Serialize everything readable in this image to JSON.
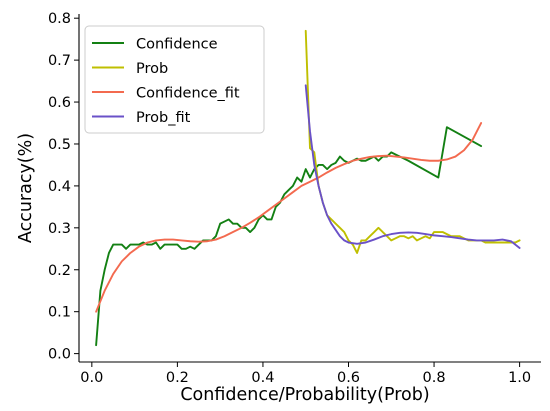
{
  "chart_data": {
    "type": "line",
    "title": "",
    "xlabel": "Confidence/Probability(Prob)",
    "ylabel": "Accuracy(%)",
    "xlim": [
      -0.03,
      1.05
    ],
    "ylim": [
      -0.02,
      0.81
    ],
    "xticks": [
      "0.0",
      "0.2",
      "0.4",
      "0.6",
      "0.8",
      "1.0"
    ],
    "yticks": [
      "0.0",
      "0.1",
      "0.2",
      "0.3",
      "0.4",
      "0.5",
      "0.6",
      "0.7",
      "0.8"
    ],
    "grid": false,
    "legend_position": "top-left",
    "series": [
      {
        "name": "Confidence",
        "color": "#138013",
        "x": [
          0.01,
          0.02,
          0.03,
          0.04,
          0.05,
          0.06,
          0.07,
          0.08,
          0.09,
          0.1,
          0.11,
          0.12,
          0.13,
          0.14,
          0.15,
          0.16,
          0.17,
          0.18,
          0.19,
          0.2,
          0.21,
          0.22,
          0.23,
          0.24,
          0.25,
          0.26,
          0.27,
          0.28,
          0.29,
          0.3,
          0.31,
          0.32,
          0.33,
          0.34,
          0.35,
          0.36,
          0.37,
          0.38,
          0.39,
          0.4,
          0.41,
          0.42,
          0.43,
          0.44,
          0.45,
          0.46,
          0.47,
          0.48,
          0.49,
          0.5,
          0.51,
          0.52,
          0.53,
          0.54,
          0.55,
          0.56,
          0.57,
          0.58,
          0.59,
          0.6,
          0.61,
          0.62,
          0.63,
          0.64,
          0.65,
          0.66,
          0.67,
          0.68,
          0.69,
          0.7,
          0.71,
          0.72,
          0.73,
          0.74,
          0.81,
          0.83,
          0.91
        ],
        "y": [
          0.02,
          0.15,
          0.2,
          0.24,
          0.26,
          0.26,
          0.26,
          0.25,
          0.26,
          0.26,
          0.26,
          0.265,
          0.26,
          0.26,
          0.265,
          0.25,
          0.26,
          0.26,
          0.26,
          0.26,
          0.25,
          0.25,
          0.255,
          0.25,
          0.26,
          0.27,
          0.27,
          0.27,
          0.28,
          0.31,
          0.315,
          0.32,
          0.31,
          0.31,
          0.3,
          0.3,
          0.29,
          0.3,
          0.32,
          0.33,
          0.32,
          0.32,
          0.35,
          0.36,
          0.38,
          0.39,
          0.4,
          0.42,
          0.41,
          0.44,
          0.42,
          0.44,
          0.45,
          0.45,
          0.44,
          0.45,
          0.455,
          0.47,
          0.46,
          0.455,
          0.46,
          0.465,
          0.46,
          0.46,
          0.465,
          0.47,
          0.46,
          0.47,
          0.47,
          0.48,
          0.475,
          0.47,
          0.465,
          0.46,
          0.42,
          0.54,
          0.495
        ]
      },
      {
        "name": "Prob",
        "color": "#bfbf00",
        "x": [
          0.5,
          0.51,
          0.52,
          0.53,
          0.54,
          0.55,
          0.56,
          0.57,
          0.58,
          0.59,
          0.6,
          0.61,
          0.62,
          0.63,
          0.64,
          0.65,
          0.66,
          0.67,
          0.68,
          0.69,
          0.7,
          0.71,
          0.72,
          0.73,
          0.74,
          0.75,
          0.76,
          0.77,
          0.78,
          0.79,
          0.8,
          0.81,
          0.82,
          0.83,
          0.84,
          0.85,
          0.86,
          0.87,
          0.88,
          0.89,
          0.9,
          0.91,
          0.92,
          0.93,
          0.94,
          0.95,
          0.96,
          0.97,
          0.98,
          0.99,
          1.0
        ],
        "y": [
          0.77,
          0.49,
          0.48,
          0.4,
          0.36,
          0.33,
          0.32,
          0.31,
          0.3,
          0.29,
          0.27,
          0.26,
          0.24,
          0.27,
          0.27,
          0.28,
          0.29,
          0.3,
          0.29,
          0.28,
          0.27,
          0.275,
          0.28,
          0.28,
          0.275,
          0.28,
          0.27,
          0.275,
          0.28,
          0.275,
          0.29,
          0.29,
          0.29,
          0.285,
          0.28,
          0.28,
          0.28,
          0.275,
          0.27,
          0.27,
          0.27,
          0.27,
          0.265,
          0.265,
          0.265,
          0.265,
          0.265,
          0.265,
          0.265,
          0.265,
          0.27
        ]
      },
      {
        "name": "Confidence_fit",
        "color": "#f36a4f",
        "x": [
          0.01,
          0.03,
          0.05,
          0.07,
          0.09,
          0.11,
          0.13,
          0.15,
          0.17,
          0.19,
          0.21,
          0.23,
          0.25,
          0.27,
          0.29,
          0.31,
          0.33,
          0.35,
          0.37,
          0.39,
          0.41,
          0.43,
          0.45,
          0.47,
          0.49,
          0.51,
          0.53,
          0.55,
          0.57,
          0.59,
          0.61,
          0.63,
          0.65,
          0.67,
          0.69,
          0.71,
          0.73,
          0.75,
          0.77,
          0.79,
          0.81,
          0.83,
          0.85,
          0.87,
          0.89,
          0.91
        ],
        "y": [
          0.1,
          0.15,
          0.19,
          0.22,
          0.24,
          0.255,
          0.265,
          0.27,
          0.272,
          0.272,
          0.27,
          0.268,
          0.267,
          0.268,
          0.272,
          0.28,
          0.29,
          0.3,
          0.312,
          0.325,
          0.34,
          0.355,
          0.37,
          0.385,
          0.4,
          0.41,
          0.42,
          0.432,
          0.443,
          0.452,
          0.46,
          0.465,
          0.469,
          0.471,
          0.472,
          0.47,
          0.468,
          0.465,
          0.462,
          0.46,
          0.46,
          0.463,
          0.47,
          0.485,
          0.51,
          0.55
        ]
      },
      {
        "name": "Prob_fit",
        "color": "#6a51c8",
        "x": [
          0.5,
          0.51,
          0.52,
          0.53,
          0.54,
          0.55,
          0.56,
          0.57,
          0.58,
          0.59,
          0.6,
          0.62,
          0.64,
          0.66,
          0.68,
          0.7,
          0.72,
          0.74,
          0.76,
          0.78,
          0.8,
          0.82,
          0.84,
          0.86,
          0.88,
          0.9,
          0.92,
          0.94,
          0.96,
          0.98,
          1.0
        ],
        "y": [
          0.64,
          0.53,
          0.45,
          0.4,
          0.36,
          0.33,
          0.31,
          0.295,
          0.28,
          0.27,
          0.265,
          0.262,
          0.265,
          0.272,
          0.28,
          0.285,
          0.288,
          0.289,
          0.288,
          0.285,
          0.282,
          0.28,
          0.278,
          0.275,
          0.272,
          0.27,
          0.27,
          0.27,
          0.272,
          0.268,
          0.252
        ]
      }
    ]
  }
}
